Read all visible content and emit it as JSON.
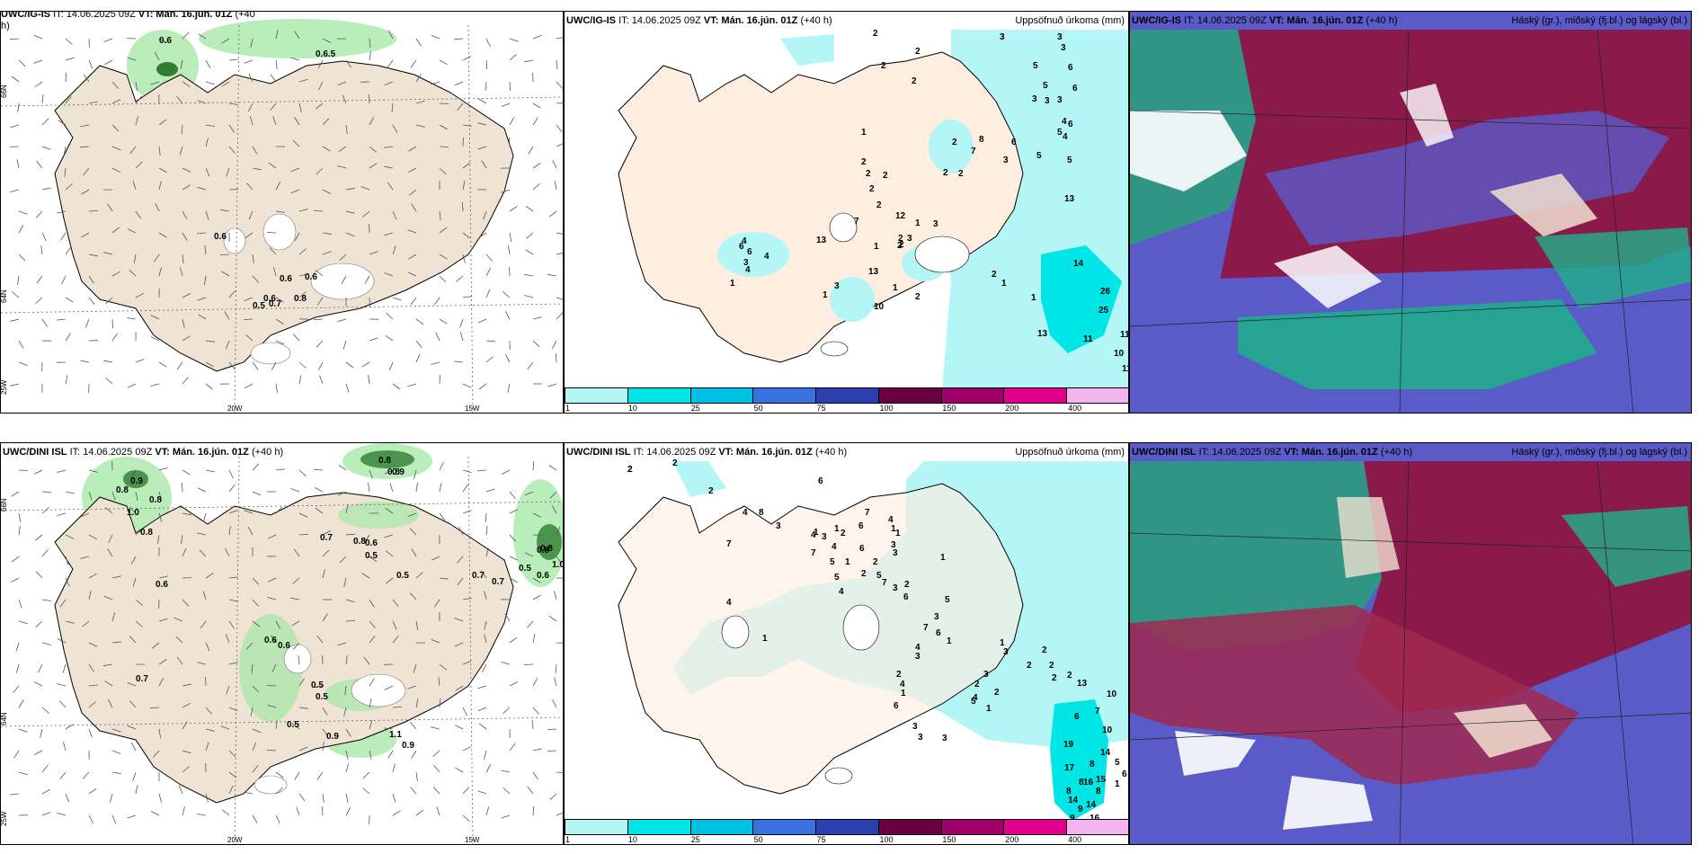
{
  "panels": [
    {
      "id": "top-left",
      "model": "UWC/IG-IS",
      "it": "IT: 14.06.2025 09Z",
      "vt_label": "VT:",
      "vt": "Mán. 16.jún. 01Z",
      "lead": "(+40",
      "lead2": "h)",
      "right": ""
    },
    {
      "id": "top-mid",
      "model": "UWC/IG-IS",
      "it": "IT: 14.06.2025 09Z",
      "vt_label": "VT:",
      "vt": "Mán. 16.jún. 01Z",
      "lead": "(+40 h)",
      "right": "Uppsöfnuð úrkoma (mm)"
    },
    {
      "id": "top-right",
      "model": "UWC/IG-IS",
      "it": "IT: 14.06.2025 09Z",
      "vt_label": "VT:",
      "vt": "Mán. 16.jún. 01Z",
      "lead": "(+40 h)",
      "right": "Háský (gr.), miðský (fj.bl.) og lágský (bl.)"
    },
    {
      "id": "bot-left",
      "model": "UWC/DINI ISL",
      "it": "IT: 14.06.2025 09Z",
      "vt_label": "VT:",
      "vt": "Mán. 16.jún. 01Z",
      "lead": "(+40 h)",
      "right": ""
    },
    {
      "id": "bot-mid",
      "model": "UWC/DINI ISL",
      "it": "IT: 14.06.2025 09Z",
      "vt_label": "VT:",
      "vt": "Mán. 16.jún. 01Z",
      "lead": "(+40 h)",
      "right": "Uppsöfnuð úrkoma (mm)"
    },
    {
      "id": "bot-right",
      "model": "UWC/DINI ISL",
      "it": "IT: 14.06.2025 09Z",
      "vt_label": "VT:",
      "vt": "Mán. 16.jún. 01Z",
      "lead": "(+40 h)",
      "right": "Háský (gr.), miðský (fj.bl.) og lágský (bl.)"
    }
  ],
  "axis_labels": {
    "lon1": "20W",
    "lon2": "15W",
    "lat_top": "66N",
    "lat_mid": "64N",
    "lat_bot": "25W",
    "lat_right_top": "65N",
    "lat_right_mid": "64N"
  },
  "colorbar": {
    "labels": [
      "1",
      "10",
      "25",
      "50",
      "75",
      "100",
      "150",
      "200",
      "400"
    ],
    "colors": [
      "#b4f5f5",
      "#00e5e5",
      "#00bfe5",
      "#3a6fe0",
      "#2a3fb0",
      "#6a0040",
      "#a0006a",
      "#e0008a",
      "#f4b4f0"
    ]
  },
  "precip_top": [
    "2",
    "2",
    "2",
    "3",
    "3",
    "3",
    "2",
    "5",
    "5",
    "6",
    "3",
    "3",
    "3",
    "4",
    "5",
    "4",
    "6",
    "2",
    "6",
    "7",
    "8",
    "6",
    "2",
    "5",
    "3",
    "5",
    "2",
    "13",
    "1",
    "2",
    "2",
    "2",
    "2",
    "2",
    "12",
    "1",
    "2",
    "3",
    "2",
    "3",
    "1",
    "2",
    "7",
    "4",
    "6",
    "6",
    "13",
    "4",
    "3",
    "1",
    "4",
    "1",
    "13",
    "3",
    "10",
    "1",
    "2",
    "2",
    "1",
    "1",
    "14",
    "26",
    "25",
    "13",
    "11",
    "11",
    "10",
    "11"
  ],
  "precip_bot": [
    "2",
    "2",
    "2",
    "4",
    "8",
    "7",
    "6",
    "4",
    "7",
    "3",
    "1",
    "1",
    "2",
    "3",
    "4",
    "5",
    "5",
    "1",
    "4",
    "7",
    "6",
    "6",
    "4",
    "1",
    "1",
    "3",
    "3",
    "2",
    "1",
    "2",
    "1",
    "4",
    "5",
    "7",
    "2",
    "3",
    "6",
    "5",
    "3",
    "7",
    "1",
    "4",
    "6",
    "3",
    "2",
    "4",
    "1",
    "6",
    "3",
    "3",
    "3",
    "2",
    "4",
    "5",
    "1",
    "2",
    "3",
    "3",
    "1",
    "2",
    "2",
    "2",
    "2",
    "2",
    "13",
    "10",
    "7",
    "10",
    "6",
    "19",
    "17",
    "15",
    "16",
    "14",
    "14",
    "16",
    "14",
    "5",
    "6",
    "8",
    "8",
    "8",
    "8",
    "9",
    "9",
    "1",
    "1",
    "2"
  ],
  "windlabels_top": [
    "0.6",
    "0.6.5",
    "0.6",
    "0.6",
    "0.6",
    "0.7",
    "0.8",
    "0.5",
    "0.6"
  ],
  "windlabels_bot": [
    "0.8",
    "0.9",
    "0.8",
    "1.0",
    "0.8",
    "0.8",
    "0.8",
    "0.9",
    "0.6",
    "0.7",
    "0.8",
    "0.6",
    "0.5",
    "0.5",
    "0.7",
    "0.8",
    "0.5",
    "0.6",
    "0.7",
    "0.7",
    "0.6",
    "0.6",
    "0.5",
    "0.5",
    "0.5",
    "0.9",
    "1.1",
    "0.9",
    "0.8",
    "1.0"
  ]
}
